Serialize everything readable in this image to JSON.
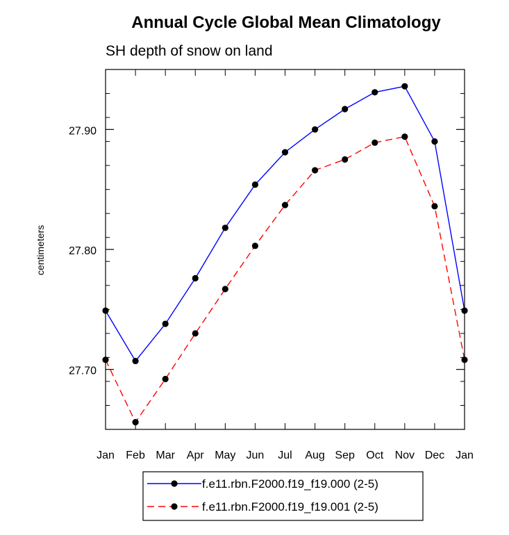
{
  "chart_data": {
    "type": "line",
    "title": "Annual Cycle Global Mean Climatology",
    "subtitle": "SH depth of snow on land",
    "xlabel": "",
    "ylabel": "centimeters",
    "categories": [
      "Jan",
      "Feb",
      "Mar",
      "Apr",
      "May",
      "Jun",
      "Jul",
      "Aug",
      "Sep",
      "Oct",
      "Nov",
      "Dec",
      "Jan"
    ],
    "ylim": [
      27.65,
      27.95
    ],
    "yticks": [
      27.7,
      27.8,
      27.9
    ],
    "ytick_labels": [
      "27.70",
      "27.80",
      "27.90"
    ],
    "grid": false,
    "legend_position": "bottom",
    "series": [
      {
        "name": "f.e11.rbn.F2000.f19_f19.000 (2-5)",
        "color": "#0000ff",
        "dash": "solid",
        "values": [
          27.749,
          27.707,
          27.738,
          27.776,
          27.818,
          27.854,
          27.881,
          27.9,
          27.917,
          27.931,
          27.936,
          27.89,
          27.749
        ]
      },
      {
        "name": "f.e11.rbn.F2000.f19_f19.001 (2-5)",
        "color": "#ff0000",
        "dash": "dashed",
        "values": [
          27.708,
          27.656,
          27.692,
          27.73,
          27.767,
          27.803,
          27.837,
          27.866,
          27.875,
          27.889,
          27.894,
          27.836,
          27.708
        ]
      }
    ]
  }
}
